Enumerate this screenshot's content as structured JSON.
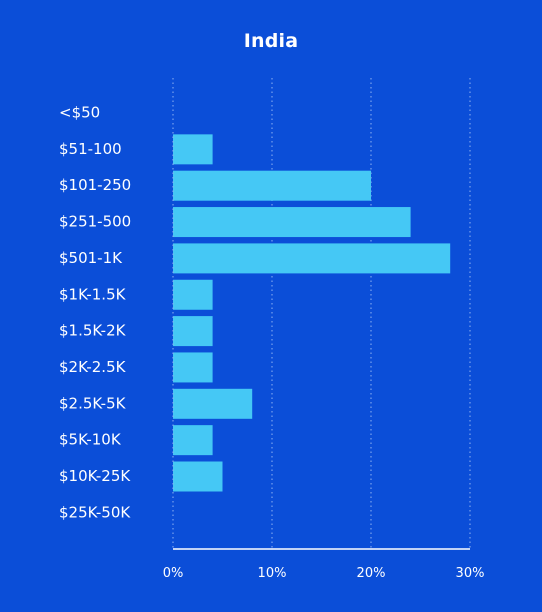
{
  "chart_data": {
    "type": "bar",
    "orientation": "horizontal",
    "title": "India",
    "categories": [
      "<$50",
      "$51-100",
      "$101-250",
      "$251-500",
      "$501-1K",
      "$1K-1.5K",
      "$1.5K-2K",
      "$2K-2.5K",
      "$2.5K-5K",
      "$5K-10K",
      "$10K-25K",
      "$25K-50K"
    ],
    "values": [
      0,
      4,
      20,
      24,
      28,
      4,
      4,
      4,
      8,
      4,
      5,
      0
    ],
    "value_unit": "%",
    "xlim": [
      0,
      30
    ],
    "x_ticks": [
      0,
      10,
      20,
      30
    ],
    "x_tick_labels": [
      "0%",
      "10%",
      "20%",
      "30%"
    ],
    "xlabel": "",
    "ylabel": "",
    "grid": "vertical dotted",
    "legend": "none",
    "colors": {
      "background": "#0b4ed8",
      "bar": "#45c8f5",
      "text": "#ffffff",
      "gridline": "#8fb1f2"
    }
  }
}
